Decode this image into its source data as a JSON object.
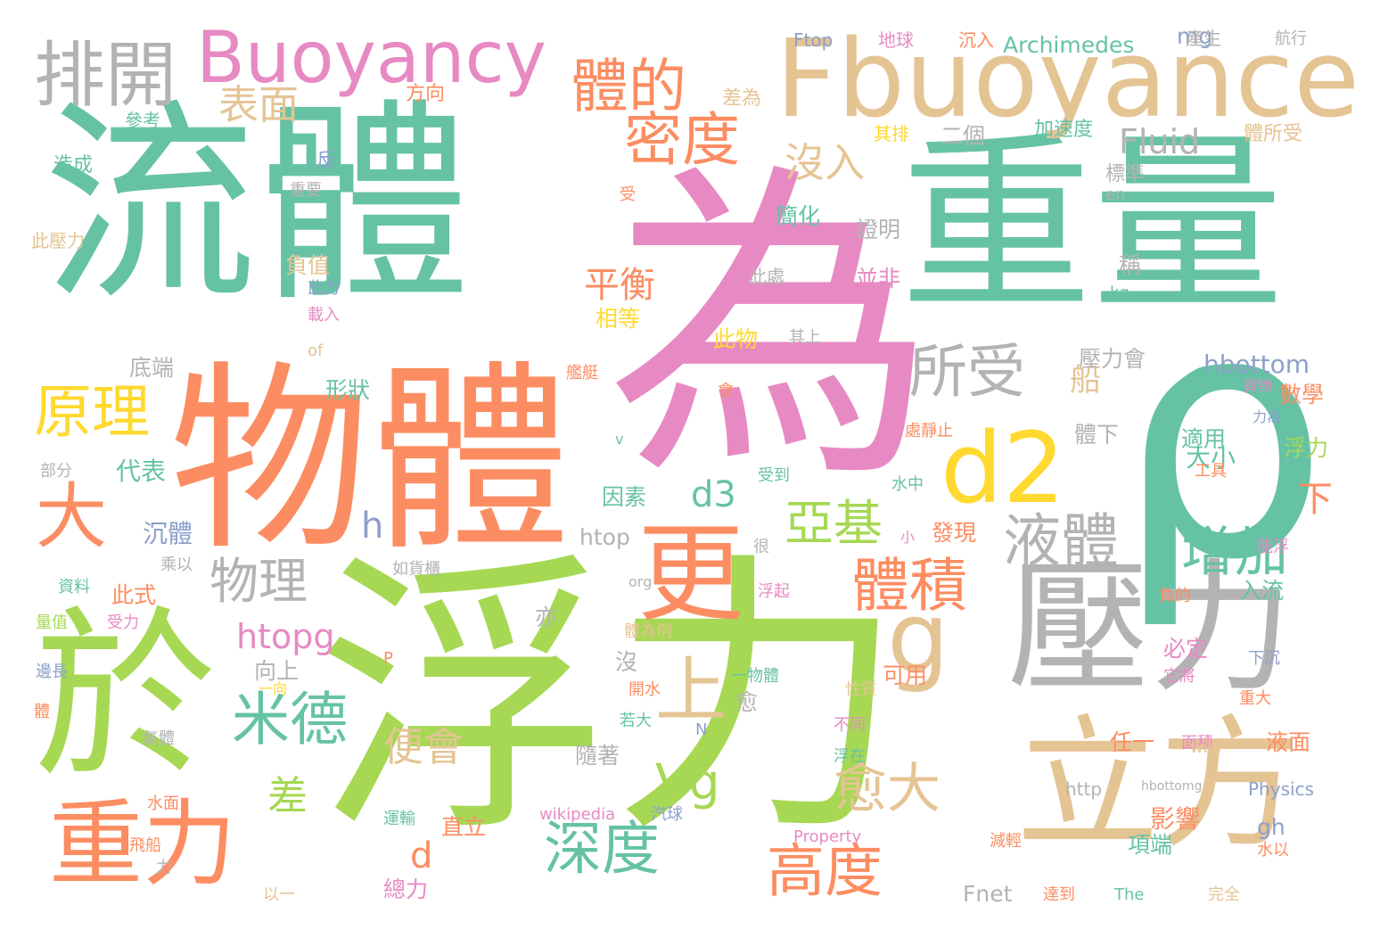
{
  "palette": {
    "green": "#66c2a5",
    "orange": "#fc8d62",
    "blue": "#8da0cb",
    "pink": "#e78ac3",
    "lime": "#a6d854",
    "yellow": "#ffd92f",
    "tan": "#e5c494",
    "gray": "#b3b3b3"
  },
  "words": [
    {
      "text": "流體",
      "color": "green",
      "size": "xxl"
    },
    {
      "text": "為",
      "color": "pink",
      "size": "xxl"
    },
    {
      "text": "重量",
      "color": "green",
      "size": "xxl"
    },
    {
      "text": "浮力",
      "color": "lime",
      "size": "xxl"
    },
    {
      "text": "物體",
      "color": "orange",
      "size": "xxl"
    },
    {
      "text": "ρ",
      "color": "green",
      "size": "xxl"
    },
    {
      "text": "於",
      "color": "lime",
      "size": "xl"
    },
    {
      "text": "壓力",
      "color": "gray",
      "size": "xl"
    },
    {
      "text": "立方",
      "color": "tan",
      "size": "xl"
    },
    {
      "text": "Fbuoyance",
      "color": "tan",
      "size": "xl"
    },
    {
      "text": "重力",
      "color": "orange",
      "size": "l"
    },
    {
      "text": "d2",
      "color": "yellow",
      "size": "l"
    },
    {
      "text": "更",
      "color": "orange",
      "size": "l"
    },
    {
      "text": "g",
      "color": "tan",
      "size": "l"
    },
    {
      "text": "Buoyancy",
      "color": "pink",
      "size": "l"
    },
    {
      "text": "排開",
      "color": "gray",
      "size": "m"
    },
    {
      "text": "大",
      "color": "orange",
      "size": "m"
    },
    {
      "text": "原理",
      "color": "yellow",
      "size": "m"
    },
    {
      "text": "體的",
      "color": "orange",
      "size": "m"
    },
    {
      "text": "密度",
      "color": "orange",
      "size": "m"
    },
    {
      "text": "所受",
      "color": "gray",
      "size": "m"
    },
    {
      "text": "液體",
      "color": "gray",
      "size": "m"
    },
    {
      "text": "體積",
      "color": "orange",
      "size": "m"
    },
    {
      "text": "亞基",
      "color": "lime",
      "size": "m"
    },
    {
      "text": "深度",
      "color": "green",
      "size": "m"
    },
    {
      "text": "米德",
      "color": "green",
      "size": "m"
    },
    {
      "text": "上",
      "color": "tan",
      "size": "m"
    },
    {
      "text": "高度",
      "color": "orange",
      "size": "m"
    },
    {
      "text": "增加",
      "color": "green",
      "size": "m"
    },
    {
      "text": "愈大",
      "color": "tan",
      "size": "m"
    },
    {
      "text": "Vg",
      "color": "lime",
      "size": "m"
    },
    {
      "text": "物理",
      "color": "gray",
      "size": "m"
    },
    {
      "text": "表面",
      "color": "tan",
      "size": "s"
    },
    {
      "text": "沒入",
      "color": "tan",
      "size": "s"
    },
    {
      "text": "Fluid",
      "color": "gray",
      "size": "s"
    },
    {
      "text": "平衡",
      "color": "orange",
      "size": "s"
    },
    {
      "text": "便會",
      "color": "tan",
      "size": "s"
    },
    {
      "text": "差",
      "color": "lime",
      "size": "s"
    },
    {
      "text": "h",
      "color": "blue",
      "size": "s"
    },
    {
      "text": "d3",
      "color": "green",
      "size": "s"
    },
    {
      "text": "d",
      "color": "orange",
      "size": "s"
    },
    {
      "text": "船",
      "color": "tan",
      "size": "s"
    },
    {
      "text": "下",
      "color": "orange",
      "size": "s"
    },
    {
      "text": "htopg",
      "color": "pink",
      "size": "s"
    },
    {
      "text": "Archimedes",
      "color": "green",
      "size": "xs"
    },
    {
      "text": "hbottom",
      "color": "blue",
      "size": "xs"
    },
    {
      "text": "htop",
      "color": "gray",
      "size": "xs"
    },
    {
      "text": "Fnet",
      "color": "gray",
      "size": "xs"
    },
    {
      "text": "mg",
      "color": "blue",
      "size": "xs"
    },
    {
      "text": "影響",
      "color": "orange",
      "size": "xs"
    },
    {
      "text": "大小",
      "color": "green",
      "size": "xs"
    },
    {
      "text": "數學",
      "color": "orange",
      "size": "xs"
    },
    {
      "text": "浮力",
      "color": "lime",
      "size": "xs"
    },
    {
      "text": "入流",
      "color": "green",
      "size": "xs"
    },
    {
      "text": "代表",
      "color": "green",
      "size": "xs"
    },
    {
      "text": "沉體",
      "color": "blue",
      "size": "xs"
    },
    {
      "text": "此式",
      "color": "orange",
      "size": "xs"
    },
    {
      "text": "因素",
      "color": "green",
      "size": "xs"
    },
    {
      "text": "形狀",
      "color": "green",
      "size": "xs"
    },
    {
      "text": "底端",
      "color": "gray",
      "size": "xs"
    },
    {
      "text": "負值",
      "color": "tan",
      "size": "xs"
    },
    {
      "text": "簡化",
      "color": "green",
      "size": "xs"
    },
    {
      "text": "證明",
      "color": "gray",
      "size": "xs"
    },
    {
      "text": "並非",
      "color": "pink",
      "size": "xs"
    },
    {
      "text": "此物",
      "color": "yellow",
      "size": "xs"
    },
    {
      "text": "相等",
      "color": "yellow",
      "size": "xs"
    },
    {
      "text": "壓力會",
      "color": "gray",
      "size": "xs"
    },
    {
      "text": "體下",
      "color": "gray",
      "size": "xs"
    },
    {
      "text": "適用",
      "color": "green",
      "size": "xs"
    },
    {
      "text": "發現",
      "color": "orange",
      "size": "xs"
    },
    {
      "text": "可用",
      "color": "orange",
      "size": "xs"
    },
    {
      "text": "必定",
      "color": "pink",
      "size": "xs"
    },
    {
      "text": "液面",
      "color": "orange",
      "size": "xs"
    },
    {
      "text": "任一",
      "color": "orange",
      "size": "xs"
    },
    {
      "text": "項端",
      "color": "green",
      "size": "xs"
    },
    {
      "text": "總力",
      "color": "pink",
      "size": "xs"
    },
    {
      "text": "直立",
      "color": "orange",
      "size": "xs"
    },
    {
      "text": "隨著",
      "color": "gray",
      "size": "xs"
    },
    {
      "text": "向上",
      "color": "gray",
      "size": "xs"
    },
    {
      "text": "亦",
      "color": "gray",
      "size": "xs"
    },
    {
      "text": "沒",
      "color": "gray",
      "size": "xs"
    },
    {
      "text": "愈",
      "color": "gray",
      "size": "xs"
    },
    {
      "text": "gh",
      "color": "blue",
      "size": "xs"
    },
    {
      "text": "二個",
      "color": "gray",
      "size": "xs"
    },
    {
      "text": "稱",
      "color": "gray",
      "size": "xs"
    },
    {
      "text": "方向",
      "color": "orange",
      "size": "xxs"
    },
    {
      "text": "差為",
      "color": "tan",
      "size": "xxs"
    },
    {
      "text": "其排",
      "color": "yellow",
      "size": "xxs"
    },
    {
      "text": "加速度",
      "color": "green",
      "size": "xxs"
    },
    {
      "text": "體所受",
      "color": "tan",
      "size": "xxs"
    },
    {
      "text": "標準",
      "color": "gray",
      "size": "xxs"
    },
    {
      "text": "Ftop",
      "color": "blue",
      "size": "xxs"
    },
    {
      "text": "地球",
      "color": "pink",
      "size": "xxs"
    },
    {
      "text": "沉入",
      "color": "orange",
      "size": "xxs"
    },
    {
      "text": "產生",
      "color": "gray",
      "size": "xxs"
    },
    {
      "text": "航行",
      "color": "gray",
      "size": "xxs"
    },
    {
      "text": "參考",
      "color": "green",
      "size": "xxs"
    },
    {
      "text": "造成",
      "color": "green",
      "size": "xxs"
    },
    {
      "text": "反",
      "color": "blue",
      "size": "xxs"
    },
    {
      "text": "重要",
      "color": "gray",
      "size": "xxs"
    },
    {
      "text": "此壓力",
      "color": "tan",
      "size": "xxs"
    },
    {
      "text": "此力",
      "color": "blue",
      "size": "xxs"
    },
    {
      "text": "載入",
      "color": "pink",
      "size": "xxs"
    },
    {
      "text": "of",
      "color": "tan",
      "size": "xxs"
    },
    {
      "text": "此處",
      "color": "gray",
      "size": "xxs"
    },
    {
      "text": "其上",
      "color": "gray",
      "size": "xxs"
    },
    {
      "text": "en",
      "color": "gray",
      "size": "xxs"
    },
    {
      "text": "kg",
      "color": "green",
      "size": "xxs"
    },
    {
      "text": "受",
      "color": "orange",
      "size": "xxs"
    },
    {
      "text": "艦艇",
      "color": "orange",
      "size": "xxs"
    },
    {
      "text": "貨物",
      "color": "pink",
      "size": "xxs"
    },
    {
      "text": "力為",
      "color": "blue",
      "size": "xxs"
    },
    {
      "text": "會",
      "color": "orange",
      "size": "xxs"
    },
    {
      "text": "處靜止",
      "color": "orange",
      "size": "xxs"
    },
    {
      "text": "部分",
      "color": "gray",
      "size": "xxs"
    },
    {
      "text": "v",
      "color": "green",
      "size": "xxs"
    },
    {
      "text": "受到",
      "color": "green",
      "size": "xxs"
    },
    {
      "text": "水中",
      "color": "green",
      "size": "xxs"
    },
    {
      "text": "工具",
      "color": "orange",
      "size": "xxs"
    },
    {
      "text": "乘以",
      "color": "gray",
      "size": "xxs"
    },
    {
      "text": "小",
      "color": "pink",
      "size": "xxs"
    },
    {
      "text": "很",
      "color": "gray",
      "size": "xxs"
    },
    {
      "text": "能浮",
      "color": "pink",
      "size": "xxs"
    },
    {
      "text": "如貨櫃",
      "color": "gray",
      "size": "xxs"
    },
    {
      "text": "org",
      "color": "gray",
      "size": "xxs"
    },
    {
      "text": "浮起",
      "color": "pink",
      "size": "xxs"
    },
    {
      "text": "資料",
      "color": "green",
      "size": "xxs"
    },
    {
      "text": "量值",
      "color": "lime",
      "size": "xxs"
    },
    {
      "text": "受力",
      "color": "pink",
      "size": "xxs"
    },
    {
      "text": "體為例",
      "color": "tan",
      "size": "xxs"
    },
    {
      "text": "負的",
      "color": "orange",
      "size": "xxs"
    },
    {
      "text": "P",
      "color": "orange",
      "size": "xxs"
    },
    {
      "text": "一物體",
      "color": "green",
      "size": "xxs"
    },
    {
      "text": "下沉",
      "color": "blue",
      "size": "xxs"
    },
    {
      "text": "邊長",
      "color": "blue",
      "size": "xxs"
    },
    {
      "text": "一向",
      "color": "yellow",
      "size": "xxs"
    },
    {
      "text": "開水",
      "color": "orange",
      "size": "xxs"
    },
    {
      "text": "性質",
      "color": "tan",
      "size": "xxs"
    },
    {
      "text": "它將",
      "color": "pink",
      "size": "xxs"
    },
    {
      "text": "重大",
      "color": "orange",
      "size": "xxs"
    },
    {
      "text": "體",
      "color": "orange",
      "size": "xxs"
    },
    {
      "text": "氣體",
      "color": "gray",
      "size": "xxs"
    },
    {
      "text": "若大",
      "color": "green",
      "size": "xxs"
    },
    {
      "text": "N",
      "color": "blue",
      "size": "xxs"
    },
    {
      "text": "不同",
      "color": "pink",
      "size": "xxs"
    },
    {
      "text": "面積",
      "color": "pink",
      "size": "xxs"
    },
    {
      "text": "wiki",
      "color": "tan",
      "size": "xxs"
    },
    {
      "text": "浮在",
      "color": "green",
      "size": "xxs"
    },
    {
      "text": "http",
      "color": "gray",
      "size": "xxs"
    },
    {
      "text": "hbottomg",
      "color": "gray",
      "size": "xxs"
    },
    {
      "text": "Physics",
      "color": "blue",
      "size": "xxs"
    },
    {
      "text": "水面",
      "color": "orange",
      "size": "xxs"
    },
    {
      "text": "運輸",
      "color": "green",
      "size": "xxs"
    },
    {
      "text": "wikipedia",
      "color": "pink",
      "size": "xxs"
    },
    {
      "text": "汽球",
      "color": "blue",
      "size": "xxs"
    },
    {
      "text": "Property",
      "color": "pink",
      "size": "xxs"
    },
    {
      "text": "減輕",
      "color": "orange",
      "size": "xxs"
    },
    {
      "text": "水以",
      "color": "orange",
      "size": "xxs"
    },
    {
      "text": "飛船",
      "color": "orange",
      "size": "xxs"
    },
    {
      "text": "力",
      "color": "gray",
      "size": "xxs"
    },
    {
      "text": "以一",
      "color": "tan",
      "size": "xxs"
    },
    {
      "text": "達到",
      "color": "orange",
      "size": "xxs"
    },
    {
      "text": "The",
      "color": "green",
      "size": "xxs"
    },
    {
      "text": "完全",
      "color": "tan",
      "size": "xxs"
    }
  ]
}
